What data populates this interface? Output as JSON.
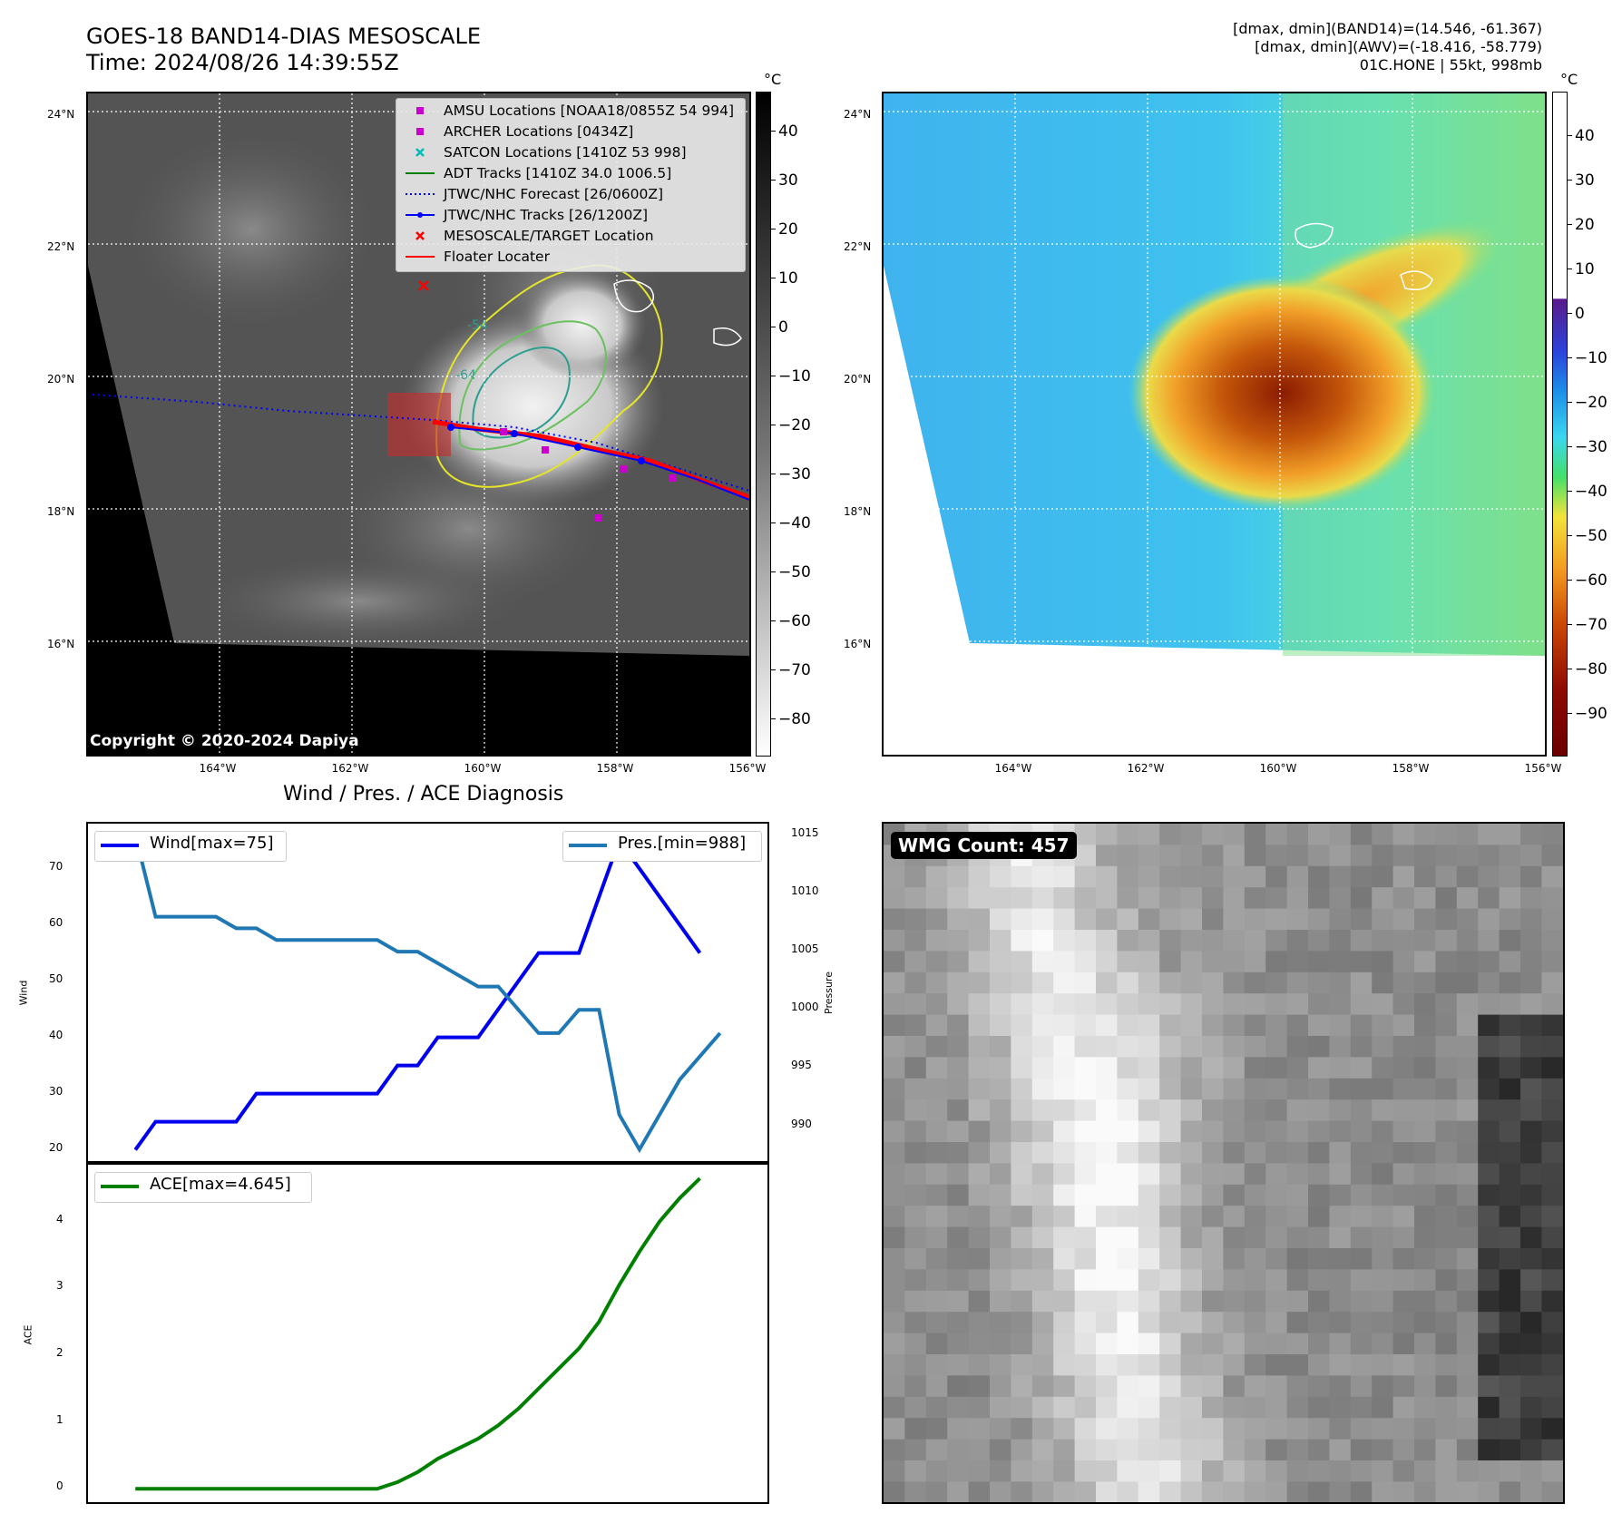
{
  "header": {
    "title_line1": "GOES-18 BAND14-DIAS MESOSCALE",
    "title_line2": "Time: 2024/08/26 14:39:55Z",
    "stat_line1": "[dmax, dmin](BAND14)=(14.546, -61.367)",
    "stat_line2": "[dmax, dmin](AWV)=(-18.416, -58.779)",
    "stat_line3": "01C.HONE | 55kt, 998mb"
  },
  "maps": {
    "lat_labels": [
      "24°N",
      "22°N",
      "20°N",
      "18°N",
      "16°N"
    ],
    "lon_labels": [
      "164°W",
      "162°W",
      "160°W",
      "158°W",
      "156°W"
    ],
    "copyright": "Copyright © 2020-2024 Dapiya",
    "contour_labels": [
      "-54",
      "-64"
    ],
    "colorbar_unit": "°C",
    "ir_colorbar_ticks": [
      "40",
      "30",
      "20",
      "10",
      "0",
      "−10",
      "−20",
      "−30",
      "−40",
      "−50",
      "−60",
      "−70",
      "−80"
    ],
    "awv_colorbar_ticks": [
      "40",
      "30",
      "20",
      "10",
      "0",
      "−10",
      "−20",
      "−30",
      "−40",
      "−50",
      "−60",
      "−70",
      "−80",
      "−90"
    ],
    "legend": [
      {
        "label": "AMSU Locations [NOAA18/0855Z 54 994]",
        "color": "#cc00cc",
        "marker": "square"
      },
      {
        "label": "ARCHER Locations [0434Z]",
        "color": "#cc00cc",
        "marker": "square"
      },
      {
        "label": "SATCON Locations [1410Z 53 998]",
        "color": "#00bbbb",
        "marker": "x"
      },
      {
        "label": "ADT Tracks [1410Z 34.0 1006.5]",
        "color": "#008000",
        "marker": "line"
      },
      {
        "label": "JTWC/NHC Forecast [26/0600Z]",
        "color": "#0000ff",
        "marker": "dotted"
      },
      {
        "label": "JTWC/NHC Tracks [26/1200Z]",
        "color": "#0000ff",
        "marker": "line-dot"
      },
      {
        "label": "MESOSCALE/TARGET Location",
        "color": "#ff0000",
        "marker": "x"
      },
      {
        "label": "Floater Locater",
        "color": "#ff0000",
        "marker": "line"
      }
    ]
  },
  "diagnosis": {
    "title": "Wind / Pres. / ACE Diagnosis",
    "wind_ylabel": "Wind",
    "pres_ylabel": "Pressure",
    "ace_ylabel": "ACE",
    "wind_legend": "Wind[max=75]",
    "pres_legend": "Pres.[min=988]",
    "ace_legend": "ACE[max=4.645]",
    "wind_ticks": [
      "70",
      "60",
      "50",
      "40",
      "30",
      "20"
    ],
    "pres_ticks": [
      "1015",
      "1010",
      "1005",
      "1000",
      "995",
      "990"
    ],
    "ace_ticks": [
      "4",
      "3",
      "2",
      "1",
      "0"
    ]
  },
  "wmg": {
    "badge": "WMG Count: 457"
  },
  "chart_data": [
    {
      "type": "line",
      "title": "Wind / Pres. / ACE Diagnosis",
      "ylabel": "Wind",
      "y2label": "Pressure",
      "x": [
        0,
        1,
        2,
        3,
        4,
        5,
        6,
        7,
        8,
        9,
        10,
        11,
        12,
        13,
        14,
        15,
        16,
        17,
        18,
        19,
        20,
        21,
        22,
        23,
        24,
        25,
        26,
        27,
        28,
        29
      ],
      "series": [
        {
          "name": "Wind[max=75]",
          "axis": "left",
          "color": "#0000ee",
          "values": [
            20,
            25,
            25,
            25,
            25,
            25,
            30,
            30,
            30,
            30,
            30,
            30,
            30,
            35,
            35,
            40,
            40,
            40,
            45,
            50,
            55,
            55,
            55,
            65,
            75,
            70,
            65,
            60,
            55,
            null
          ]
        },
        {
          "name": "Pres.[min=988]",
          "axis": "right",
          "color": "#1f77b4",
          "values": [
            1015,
            1008,
            1008,
            1008,
            1008,
            1007,
            1007,
            1006,
            1006,
            1006,
            1006,
            1006,
            1006,
            1005,
            1005,
            1004,
            1003,
            1002,
            1002,
            1000,
            998,
            998,
            1000,
            1000,
            991,
            988,
            991,
            994,
            996,
            998
          ]
        }
      ],
      "ylim": [
        18,
        78
      ],
      "y2lim": [
        987,
        1016
      ]
    },
    {
      "type": "line",
      "ylabel": "ACE",
      "x": [
        0,
        1,
        2,
        3,
        4,
        5,
        6,
        7,
        8,
        9,
        10,
        11,
        12,
        13,
        14,
        15,
        16,
        17,
        18,
        19,
        20,
        21,
        22,
        23,
        24,
        25,
        26,
        27,
        28,
        29
      ],
      "series": [
        {
          "name": "ACE[max=4.645]",
          "color": "#008000",
          "values": [
            0,
            0,
            0,
            0,
            0,
            0,
            0,
            0,
            0,
            0,
            0,
            0,
            0,
            0.1,
            0.25,
            0.45,
            0.6,
            0.75,
            0.95,
            1.2,
            1.5,
            1.8,
            2.1,
            2.5,
            3.05,
            3.55,
            4.0,
            4.35,
            4.645,
            null
          ]
        }
      ],
      "ylim": [
        -0.2,
        4.85
      ]
    }
  ]
}
